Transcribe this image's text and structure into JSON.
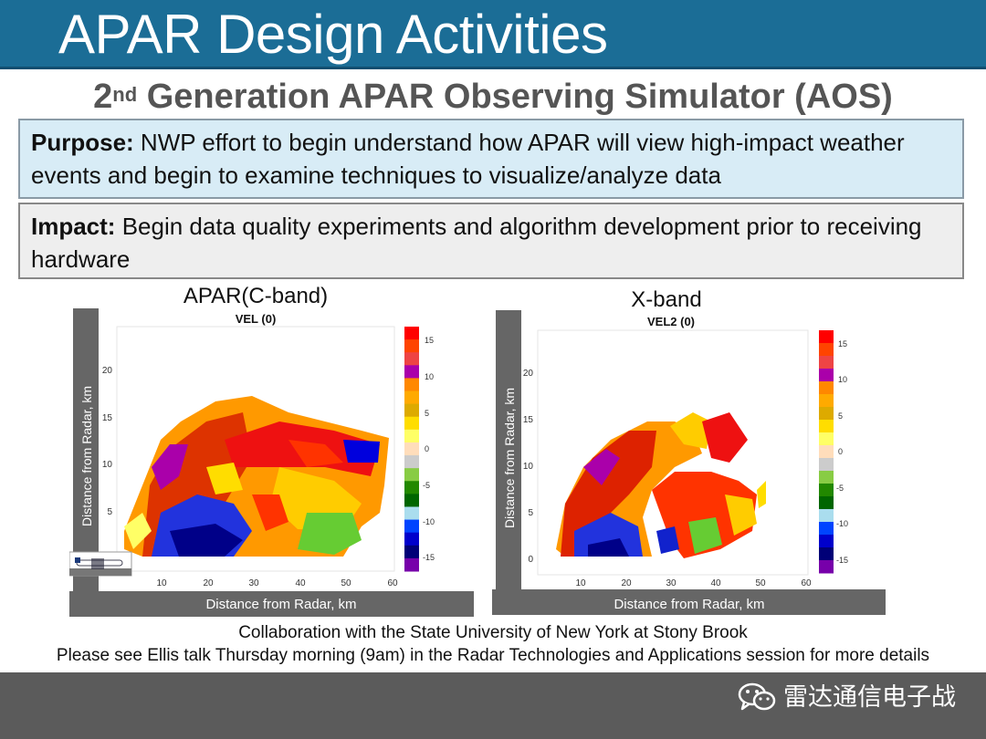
{
  "header": {
    "title": "APAR Design Activities"
  },
  "subtitle": {
    "prefix": "2",
    "sup": "nd",
    "rest": " Generation APAR Observing Simulator (AOS)"
  },
  "purpose": {
    "label": "Purpose:",
    "text": " NWP effort to begin understand how APAR will view high-impact weather events and begin to examine techniques to visualize/analyze data"
  },
  "impact": {
    "label": "Impact:",
    "text": " Begin data quality experiments and algorithm development prior to receiving hardware"
  },
  "charts": [
    {
      "title": "APAR(C-band)",
      "subtitle": "VEL (0)",
      "ylabel": "Distance from Radar, km",
      "xlabel": "Distance from Radar, km",
      "xticks": [
        "10",
        "20",
        "30",
        "40",
        "50",
        "60"
      ],
      "yticks": [
        "5",
        "10",
        "15",
        "20"
      ],
      "colorbar_ticks": [
        "15",
        "10",
        "5",
        "0",
        "-5",
        "-10",
        "-15"
      ]
    },
    {
      "title": "X-band",
      "subtitle": "VEL2 (0)",
      "ylabel": "Distance from Radar, km",
      "xlabel": "Distance from Radar, km",
      "xticks": [
        "10",
        "20",
        "30",
        "40",
        "50",
        "60"
      ],
      "yticks": [
        "0",
        "5",
        "10",
        "15",
        "20"
      ],
      "colorbar_ticks": [
        "15",
        "10",
        "5",
        "0",
        "-5",
        "-10",
        "-15"
      ]
    }
  ],
  "colors": {
    "title_bar": "#1b6d96",
    "purpose_bg": "#d8ecf6",
    "impact_bg": "#eeeeee",
    "bottom_bar": "#5b5b5b"
  },
  "colorbar_colors": [
    "#ff0000",
    "#ff4400",
    "#ee4444",
    "#aa00aa",
    "#ff8800",
    "#ffaa00",
    "#ddaa00",
    "#ffdd00",
    "#ffff66",
    "#ffddbb",
    "#cccccc",
    "#88cc44",
    "#228800",
    "#006600",
    "#aaddee",
    "#0044ff",
    "#0000cc",
    "#000077",
    "#7700aa"
  ],
  "footer": {
    "line1": "Collaboration with the State University of New York at Stony Brook",
    "line2": "Please see Ellis talk Thursday morning (9am) in the Radar Technologies and Applications session for more details"
  },
  "brand": {
    "text": "雷达通信电子战",
    "icon": "wechat-icon"
  }
}
